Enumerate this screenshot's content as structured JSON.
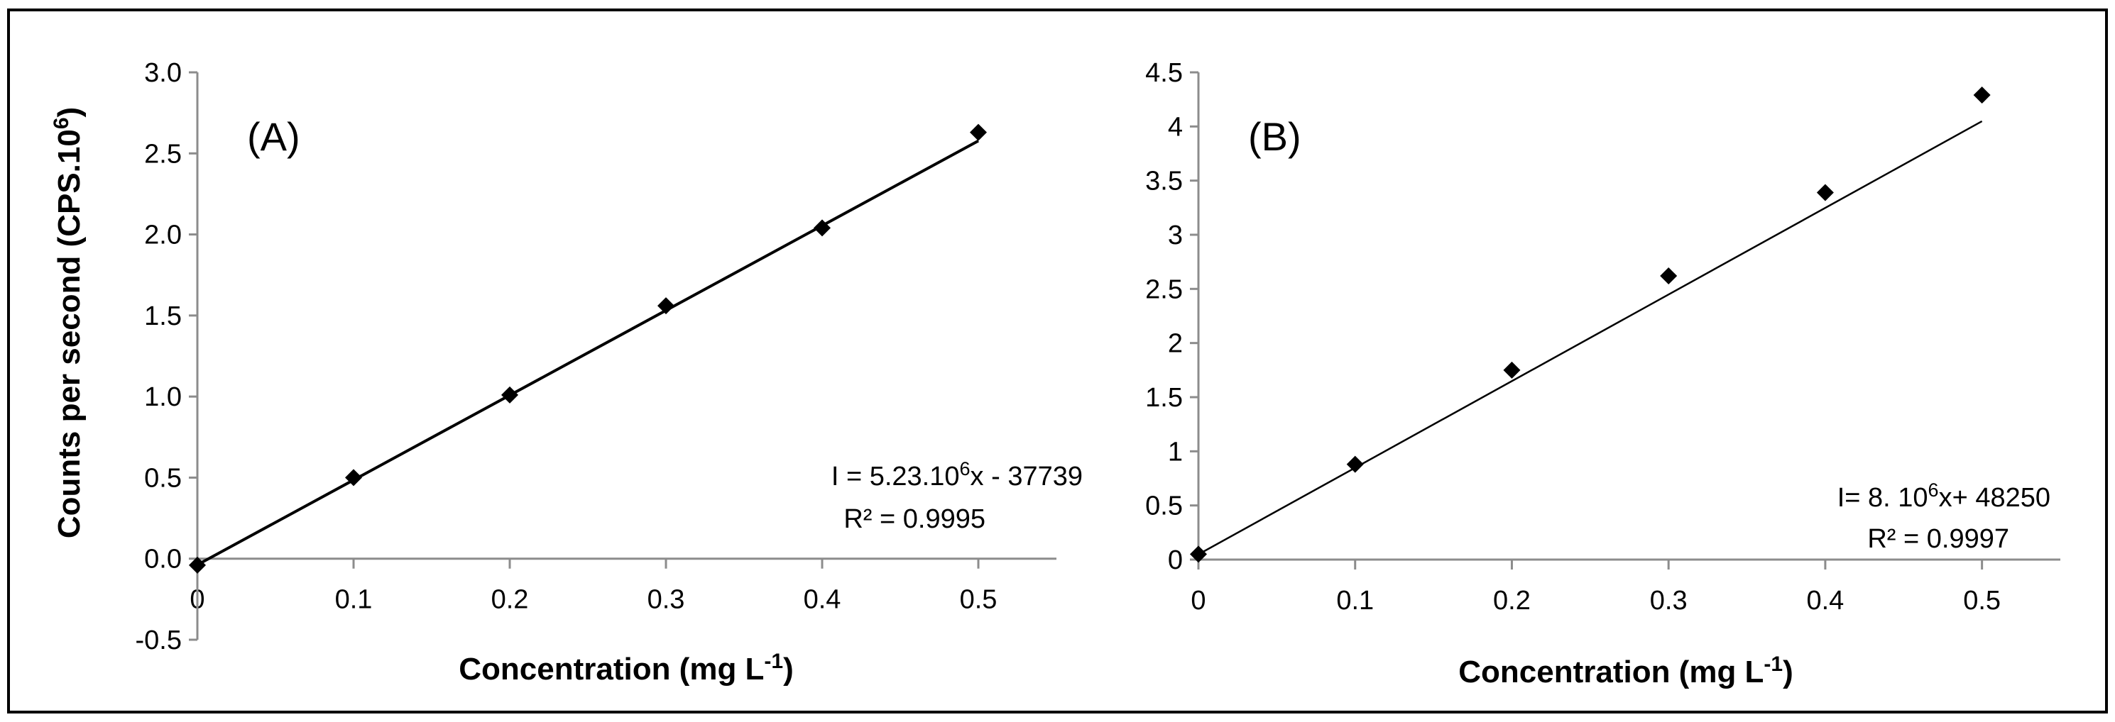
{
  "chart_data": [
    {
      "type": "scatter",
      "panel_label": "(A)",
      "x": [
        0,
        0.1,
        0.2,
        0.3,
        0.4,
        0.5
      ],
      "series": [
        {
          "name": "",
          "values": [
            -0.04,
            0.5,
            1.01,
            1.56,
            2.04,
            2.63
          ]
        }
      ],
      "trendline": {
        "slope": 5.23,
        "intercept": -0.037739
      },
      "xlim": [
        0,
        0.55
      ],
      "ylim": [
        -0.5,
        3.0
      ],
      "x_ticks": [
        0,
        0.1,
        0.2,
        0.3,
        0.4,
        0.5
      ],
      "x_tick_labels": [
        "0",
        "0.1",
        "0.2",
        "0.3",
        "0.4",
        "0.5"
      ],
      "y_ticks": [
        -0.5,
        0,
        0.5,
        1.0,
        1.5,
        2.0,
        2.5,
        3.0
      ],
      "y_tick_labels": [
        "-0.5",
        "0.0",
        "0.5",
        "1.0",
        "1.5",
        "2.0",
        "2.5",
        "3.0"
      ],
      "xlabel": {
        "main": "Concentration (mg L",
        "sup": "-1",
        "end": ")"
      },
      "ylabel": {
        "main": "Counts per second (CPS.10",
        "sup": "6",
        "end": ")"
      },
      "equation": {
        "pre": "I = 5.23.10",
        "sup": "6",
        "post": "x - 37739"
      },
      "r_squared": "R² = 0.9995",
      "grid": false,
      "marker": "diamond",
      "color": "#000000"
    },
    {
      "type": "scatter",
      "panel_label": "(B)",
      "x": [
        0,
        0.1,
        0.2,
        0.3,
        0.4,
        0.5
      ],
      "series": [
        {
          "name": "",
          "values": [
            0.05,
            0.88,
            1.75,
            2.62,
            3.39,
            4.29
          ]
        }
      ],
      "trendline": {
        "slope": 8.0,
        "intercept": 0.04825
      },
      "xlim": [
        0,
        0.55
      ],
      "ylim": [
        0,
        4.5
      ],
      "x_ticks": [
        0,
        0.1,
        0.2,
        0.3,
        0.4,
        0.5
      ],
      "x_tick_labels": [
        "0",
        "0.1",
        "0.2",
        "0.3",
        "0.4",
        "0.5"
      ],
      "y_ticks": [
        0,
        0.5,
        1,
        1.5,
        2,
        2.5,
        3,
        3.5,
        4,
        4.5
      ],
      "y_tick_labels": [
        "0",
        "0.5",
        "1",
        "1.5",
        "2",
        "2.5",
        "3",
        "3.5",
        "4",
        "4.5"
      ],
      "xlabel": {
        "main": "Concentration (mg L",
        "sup": "-1",
        "end": ")"
      },
      "ylabel": {
        "main": "",
        "sup": "",
        "end": ""
      },
      "equation": {
        "pre": "I= 8. 10",
        "sup": "6",
        "post": "x+ 48250"
      },
      "r_squared": "R² = 0.9997",
      "grid": false,
      "marker": "diamond",
      "color": "#000000"
    }
  ]
}
